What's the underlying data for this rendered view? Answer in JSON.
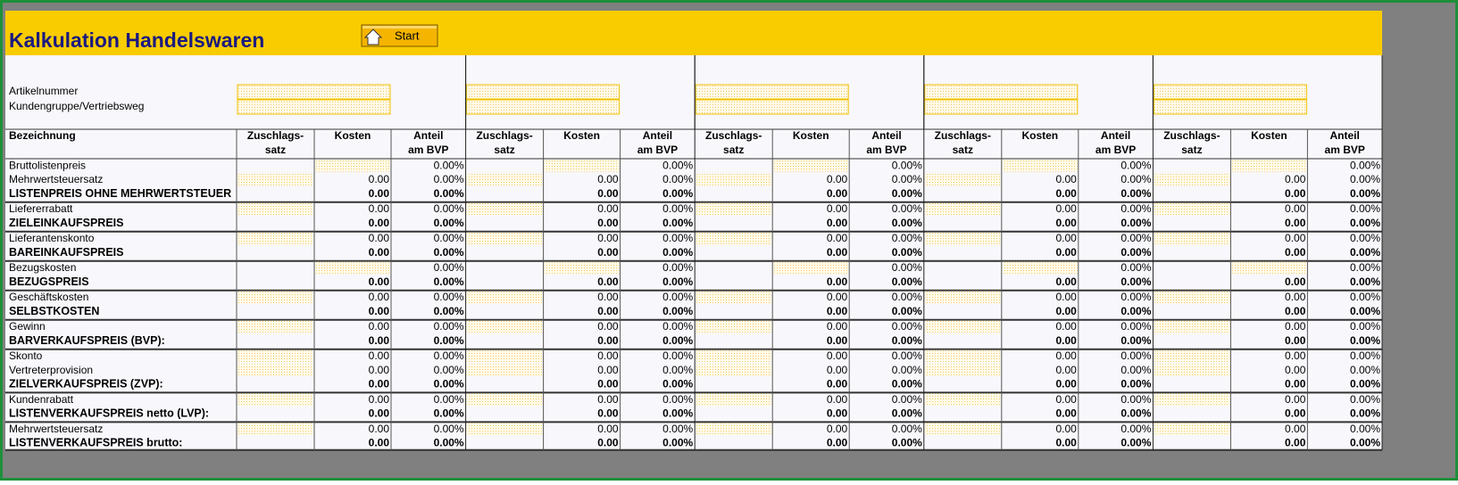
{
  "title": "Kalkulation Handelswaren",
  "start_button": "Start",
  "top_labels": [
    "Artikelnummer",
    "Kundengruppe/Vertriebsweg"
  ],
  "header": {
    "label": "Bezeichnung",
    "columns": [
      [
        "Zuschlags-",
        "satz"
      ],
      [
        "Kosten"
      ],
      [
        "Anteil",
        "am BVP"
      ]
    ]
  },
  "sections": [
    [
      {
        "label": "Bruttolistenpreis",
        "bold": false,
        "cells": [
          [
            null,
            "0.00%"
          ],
          [
            null,
            "0.00%"
          ],
          [
            null,
            "0.00%"
          ],
          [
            null,
            "0.00%"
          ],
          [
            null,
            "0.00%"
          ]
        ]
      },
      {
        "label": "Mehrwertsteuersatz",
        "bold": false,
        "cells": [
          [
            "0.00",
            "0.00%"
          ],
          [
            "0.00",
            "0.00%"
          ],
          [
            "0.00",
            "0.00%"
          ],
          [
            "0.00",
            "0.00%"
          ],
          [
            "0.00",
            "0.00%"
          ]
        ]
      },
      {
        "label": "LISTENPREIS OHNE MEHRWERTSTEUER",
        "bold": true,
        "cells": [
          [
            "0.00",
            "0.00%"
          ],
          [
            "0.00",
            "0.00%"
          ],
          [
            "0.00",
            "0.00%"
          ],
          [
            "0.00",
            "0.00%"
          ],
          [
            "0.00",
            "0.00%"
          ]
        ]
      }
    ],
    [
      {
        "label": "Liefererrabatt",
        "bold": false,
        "cells": [
          [
            "0.00",
            "0.00%"
          ],
          [
            "0.00",
            "0.00%"
          ],
          [
            "0.00",
            "0.00%"
          ],
          [
            "0.00",
            "0.00%"
          ],
          [
            "0.00",
            "0.00%"
          ]
        ]
      },
      {
        "label": "ZIELEINKAUFSPREIS",
        "bold": true,
        "cells": [
          [
            "0.00",
            "0.00%"
          ],
          [
            "0.00",
            "0.00%"
          ],
          [
            "0.00",
            "0.00%"
          ],
          [
            "0.00",
            "0.00%"
          ],
          [
            "0.00",
            "0.00%"
          ]
        ]
      }
    ],
    [
      {
        "label": "Lieferantenskonto",
        "bold": false,
        "cells": [
          [
            "0.00",
            "0.00%"
          ],
          [
            "0.00",
            "0.00%"
          ],
          [
            "0.00",
            "0.00%"
          ],
          [
            "0.00",
            "0.00%"
          ],
          [
            "0.00",
            "0.00%"
          ]
        ]
      },
      {
        "label": "BAREINKAUFSPREIS",
        "bold": true,
        "cells": [
          [
            "0.00",
            "0.00%"
          ],
          [
            "0.00",
            "0.00%"
          ],
          [
            "0.00",
            "0.00%"
          ],
          [
            "0.00",
            "0.00%"
          ],
          [
            "0.00",
            "0.00%"
          ]
        ]
      }
    ],
    [
      {
        "label": "Bezugskosten",
        "bold": false,
        "cells": [
          [
            null,
            "0.00%"
          ],
          [
            null,
            "0.00%"
          ],
          [
            null,
            "0.00%"
          ],
          [
            null,
            "0.00%"
          ],
          [
            null,
            "0.00%"
          ]
        ]
      },
      {
        "label": "BEZUGSPREIS",
        "bold": true,
        "cells": [
          [
            "0.00",
            "0.00%"
          ],
          [
            "0.00",
            "0.00%"
          ],
          [
            "0.00",
            "0.00%"
          ],
          [
            "0.00",
            "0.00%"
          ],
          [
            "0.00",
            "0.00%"
          ]
        ]
      }
    ],
    [
      {
        "label": "Geschäftskosten",
        "bold": false,
        "cells": [
          [
            "0.00",
            "0.00%"
          ],
          [
            "0.00",
            "0.00%"
          ],
          [
            "0.00",
            "0.00%"
          ],
          [
            "0.00",
            "0.00%"
          ],
          [
            "0.00",
            "0.00%"
          ]
        ]
      },
      {
        "label": "SELBSTKOSTEN",
        "bold": true,
        "cells": [
          [
            "0.00",
            "0.00%"
          ],
          [
            "0.00",
            "0.00%"
          ],
          [
            "0.00",
            "0.00%"
          ],
          [
            "0.00",
            "0.00%"
          ],
          [
            "0.00",
            "0.00%"
          ]
        ]
      }
    ],
    [
      {
        "label": "Gewinn",
        "bold": false,
        "cells": [
          [
            "0.00",
            "0.00%"
          ],
          [
            "0.00",
            "0.00%"
          ],
          [
            "0.00",
            "0.00%"
          ],
          [
            "0.00",
            "0.00%"
          ],
          [
            "0.00",
            "0.00%"
          ]
        ]
      },
      {
        "label": "BARVERKAUFSPREIS (BVP):",
        "bold": true,
        "cells": [
          [
            "0.00",
            "0.00%"
          ],
          [
            "0.00",
            "0.00%"
          ],
          [
            "0.00",
            "0.00%"
          ],
          [
            "0.00",
            "0.00%"
          ],
          [
            "0.00",
            "0.00%"
          ]
        ]
      }
    ],
    [
      {
        "label": "Skonto",
        "bold": false,
        "cells": [
          [
            "0.00",
            "0.00%"
          ],
          [
            "0.00",
            "0.00%"
          ],
          [
            "0.00",
            "0.00%"
          ],
          [
            "0.00",
            "0.00%"
          ],
          [
            "0.00",
            "0.00%"
          ]
        ]
      },
      {
        "label": "Vertreterprovision",
        "bold": false,
        "cells": [
          [
            "0.00",
            "0.00%"
          ],
          [
            "0.00",
            "0.00%"
          ],
          [
            "0.00",
            "0.00%"
          ],
          [
            "0.00",
            "0.00%"
          ],
          [
            "0.00",
            "0.00%"
          ]
        ]
      },
      {
        "label": "ZIELVERKAUFSPREIS (ZVP):",
        "bold": true,
        "cells": [
          [
            "0.00",
            "0.00%"
          ],
          [
            "0.00",
            "0.00%"
          ],
          [
            "0.00",
            "0.00%"
          ],
          [
            "0.00",
            "0.00%"
          ],
          [
            "0.00",
            "0.00%"
          ]
        ]
      }
    ],
    [
      {
        "label": "Kundenrabatt",
        "bold": false,
        "cells": [
          [
            "0.00",
            "0.00%"
          ],
          [
            "0.00",
            "0.00%"
          ],
          [
            "0.00",
            "0.00%"
          ],
          [
            "0.00",
            "0.00%"
          ],
          [
            "0.00",
            "0.00%"
          ]
        ]
      },
      {
        "label": "LISTENVERKAUFSPREIS netto (LVP):",
        "bold": true,
        "cells": [
          [
            "0.00",
            "0.00%"
          ],
          [
            "0.00",
            "0.00%"
          ],
          [
            "0.00",
            "0.00%"
          ],
          [
            "0.00",
            "0.00%"
          ],
          [
            "0.00",
            "0.00%"
          ]
        ]
      }
    ],
    [
      {
        "label": "Mehrwertsteuersatz",
        "bold": false,
        "cells": [
          [
            "0.00",
            "0.00%"
          ],
          [
            "0.00",
            "0.00%"
          ],
          [
            "0.00",
            "0.00%"
          ],
          [
            "0.00",
            "0.00%"
          ],
          [
            "0.00",
            "0.00%"
          ]
        ]
      },
      {
        "label": "LISTENVERKAUFSPREIS brutto:",
        "bold": true,
        "cells": [
          [
            "0.00",
            "0.00%"
          ],
          [
            "0.00",
            "0.00%"
          ],
          [
            "0.00",
            "0.00%"
          ],
          [
            "0.00",
            "0.00%"
          ],
          [
            "0.00",
            "0.00%"
          ]
        ]
      }
    ]
  ]
}
